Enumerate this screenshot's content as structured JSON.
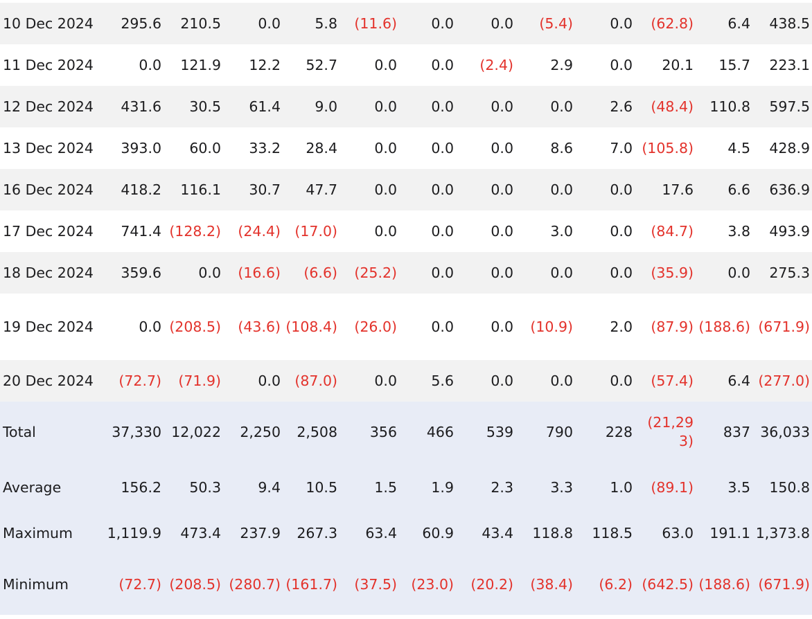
{
  "colors": {
    "negative": "#e3322b",
    "row_shaded": "#f2f2f2",
    "summary_bg": "#e8ecf6"
  },
  "rows": [
    {
      "label": "10 Dec 2024",
      "cells": [
        "295.6",
        "210.5",
        "0.0",
        "5.8",
        "(11.6)",
        "0.0",
        "0.0",
        "(5.4)",
        "0.0",
        "(62.8)",
        "6.4",
        "438.5"
      ]
    },
    {
      "label": "11 Dec 2024",
      "cells": [
        "0.0",
        "121.9",
        "12.2",
        "52.7",
        "0.0",
        "0.0",
        "(2.4)",
        "2.9",
        "0.0",
        "20.1",
        "15.7",
        "223.1"
      ]
    },
    {
      "label": "12 Dec 2024",
      "cells": [
        "431.6",
        "30.5",
        "61.4",
        "9.0",
        "0.0",
        "0.0",
        "0.0",
        "0.0",
        "2.6",
        "(48.4)",
        "110.8",
        "597.5"
      ]
    },
    {
      "label": "13 Dec 2024",
      "cells": [
        "393.0",
        "60.0",
        "33.2",
        "28.4",
        "0.0",
        "0.0",
        "0.0",
        "8.6",
        "7.0",
        "(105.8)",
        "4.5",
        "428.9"
      ]
    },
    {
      "label": "16 Dec 2024",
      "cells": [
        "418.2",
        "116.1",
        "30.7",
        "47.7",
        "0.0",
        "0.0",
        "0.0",
        "0.0",
        "0.0",
        "17.6",
        "6.6",
        "636.9"
      ]
    },
    {
      "label": "17 Dec 2024",
      "cells": [
        "741.4",
        "(128.2)",
        "(24.4)",
        "(17.0)",
        "0.0",
        "0.0",
        "0.0",
        "3.0",
        "0.0",
        "(84.7)",
        "3.8",
        "493.9"
      ]
    },
    {
      "label": "18 Dec 2024",
      "cells": [
        "359.6",
        "0.0",
        "(16.6)",
        "(6.6)",
        "(25.2)",
        "0.0",
        "0.0",
        "0.0",
        "0.0",
        "(35.9)",
        "0.0",
        "275.3"
      ]
    },
    {
      "label": "19 Dec 2024",
      "cells": [
        "0.0",
        "(208.5)",
        "(43.6)",
        "(108.4)",
        "(26.0)",
        "0.0",
        "0.0",
        "(10.9)",
        "2.0",
        "(87.9)",
        "(188.6)",
        "(671.9)"
      ]
    },
    {
      "label": "20 Dec 2024",
      "cells": [
        "(72.7)",
        "(71.9)",
        "0.0",
        "(87.0)",
        "0.0",
        "5.6",
        "0.0",
        "0.0",
        "0.0",
        "(57.4)",
        "6.4",
        "(277.0)"
      ]
    }
  ],
  "summary": [
    {
      "label": "Total",
      "cells": [
        "37,330",
        "12,022",
        "2,250",
        "2,508",
        "356",
        "466",
        "539",
        "790",
        "228",
        "(21,293)",
        "837",
        "36,033"
      ]
    },
    {
      "label": "Average",
      "cells": [
        "156.2",
        "50.3",
        "9.4",
        "10.5",
        "1.5",
        "1.9",
        "2.3",
        "3.3",
        "1.0",
        "(89.1)",
        "3.5",
        "150.8"
      ]
    },
    {
      "label": "Maximum",
      "cells": [
        "1,119.9",
        "473.4",
        "237.9",
        "267.3",
        "63.4",
        "60.9",
        "43.4",
        "118.8",
        "118.5",
        "63.0",
        "191.1",
        "1,373.8"
      ]
    },
    {
      "label": "Minimum",
      "cells": [
        "(72.7)",
        "(208.5)",
        "(280.7)",
        "(161.7)",
        "(37.5)",
        "(23.0)",
        "(20.2)",
        "(38.4)",
        "(6.2)",
        "(642.5)",
        "(188.6)",
        "(671.9)"
      ]
    }
  ]
}
